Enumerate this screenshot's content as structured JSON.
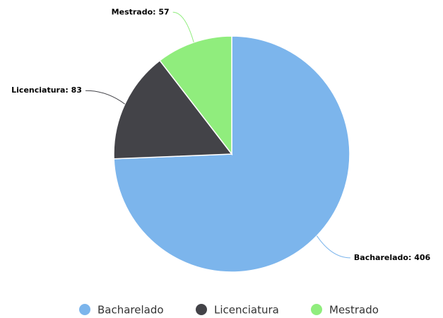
{
  "chart_data": {
    "type": "pie",
    "categories": [
      "Bacharelado",
      "Licenciatura",
      "Mestrado"
    ],
    "values": [
      406,
      83,
      57
    ],
    "value_labels": [
      "Bacharelado: 406",
      "Licenciatura: 83",
      "Mestrado: 57"
    ],
    "colors": [
      "#7cb5ec",
      "#434348",
      "#90ed7d"
    ],
    "legend": "bottom"
  }
}
